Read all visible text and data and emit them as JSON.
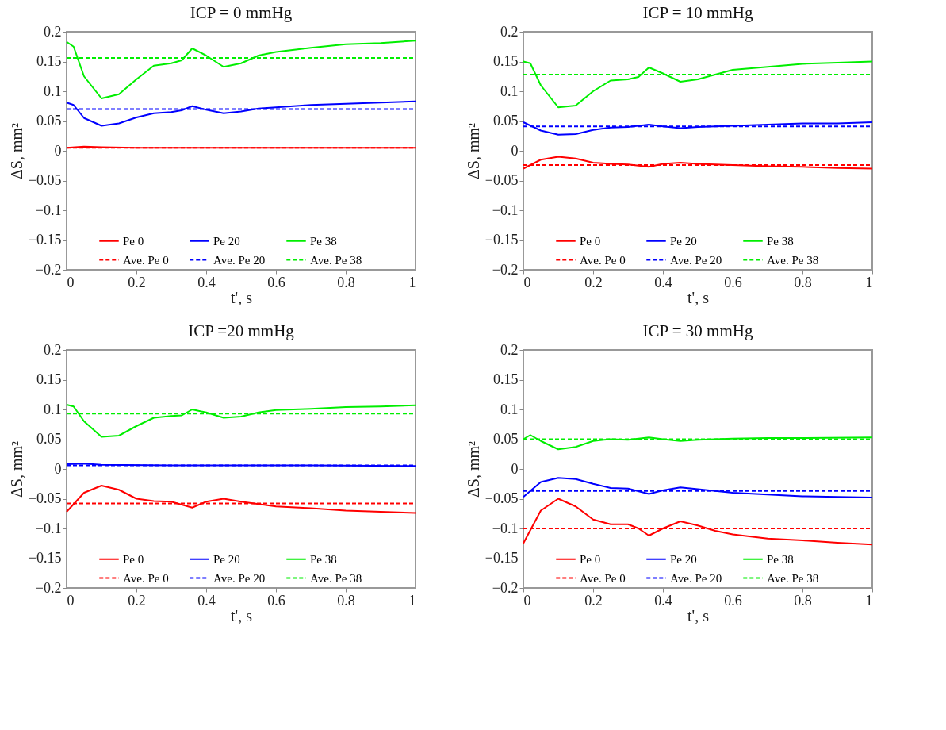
{
  "chart_data": [
    {
      "type": "line",
      "title": "ICP = 0 mmHg",
      "xlabel": "t', s",
      "ylabel": "ΔS, mm²",
      "xlim": [
        0,
        1
      ],
      "ylim": [
        -0.2,
        0.2
      ],
      "xticks": [
        0,
        0.2,
        0.4,
        0.6,
        0.8,
        1
      ],
      "yticks": [
        {
          "value": -0.2,
          "label": "−0.2"
        },
        {
          "value": -0.15,
          "label": "−0.15"
        },
        {
          "value": -0.1,
          "label": "−0.1"
        },
        {
          "value": -0.05,
          "label": "−0.05"
        },
        0,
        0.05,
        0.1,
        0.15,
        0.2
      ],
      "grid": false,
      "legend": "bottom",
      "marker": "none",
      "series": [
        {
          "name": "Pe 0",
          "color": "#ff0000",
          "line_style": "solid",
          "x": [
            0,
            0.05,
            0.1,
            0.2,
            0.4,
            0.6,
            0.8,
            1
          ],
          "values": [
            0.005,
            0.007,
            0.006,
            0.005,
            0.005,
            0.005,
            0.005,
            0.005
          ]
        },
        {
          "name": "Pe 20",
          "color": "#0000ff",
          "line_style": "solid",
          "x": [
            0,
            0.02,
            0.05,
            0.1,
            0.15,
            0.2,
            0.25,
            0.3,
            0.33,
            0.36,
            0.4,
            0.45,
            0.5,
            0.55,
            0.6,
            0.7,
            0.8,
            0.9,
            1
          ],
          "values": [
            0.081,
            0.077,
            0.055,
            0.042,
            0.046,
            0.056,
            0.063,
            0.065,
            0.068,
            0.075,
            0.069,
            0.063,
            0.066,
            0.071,
            0.073,
            0.077,
            0.079,
            0.081,
            0.083
          ]
        },
        {
          "name": "Pe 38",
          "color": "#00ee00",
          "line_style": "solid",
          "x": [
            0,
            0.02,
            0.05,
            0.1,
            0.15,
            0.2,
            0.25,
            0.3,
            0.33,
            0.36,
            0.4,
            0.45,
            0.5,
            0.55,
            0.6,
            0.7,
            0.8,
            0.9,
            1
          ],
          "values": [
            0.183,
            0.175,
            0.125,
            0.088,
            0.095,
            0.12,
            0.143,
            0.147,
            0.152,
            0.172,
            0.16,
            0.141,
            0.147,
            0.16,
            0.166,
            0.173,
            0.179,
            0.181,
            0.185
          ]
        },
        {
          "name": "Ave. Pe 0",
          "color": "#ff0000",
          "line_style": "dashed",
          "x": [
            0,
            1
          ],
          "values": [
            0.005,
            0.005
          ]
        },
        {
          "name": "Ave. Pe 20",
          "color": "#0000ff",
          "line_style": "dashed",
          "x": [
            0,
            1
          ],
          "values": [
            0.07,
            0.07
          ]
        },
        {
          "name": "Ave. Pe 38",
          "color": "#00ee00",
          "line_style": "dashed",
          "x": [
            0,
            1
          ],
          "values": [
            0.156,
            0.156
          ]
        }
      ]
    },
    {
      "type": "line",
      "title": "ICP = 10 mmHg",
      "xlabel": "t', s",
      "ylabel": "ΔS, mm²",
      "xlim": [
        0,
        1
      ],
      "ylim": [
        -0.2,
        0.2
      ],
      "xticks": [
        0,
        0.2,
        0.4,
        0.6,
        0.8,
        1
      ],
      "yticks": [
        {
          "value": -0.2,
          "label": "−0.2"
        },
        {
          "value": -0.15,
          "label": "−0.15"
        },
        {
          "value": -0.1,
          "label": "−0.1"
        },
        {
          "value": -0.05,
          "label": "−0.05"
        },
        0,
        0.05,
        0.1,
        0.15,
        0.2
      ],
      "grid": false,
      "legend": "bottom",
      "marker": "none",
      "series": [
        {
          "name": "Pe 0",
          "color": "#ff0000",
          "line_style": "solid",
          "x": [
            0,
            0.05,
            0.1,
            0.15,
            0.2,
            0.25,
            0.3,
            0.36,
            0.4,
            0.45,
            0.5,
            0.6,
            0.7,
            0.8,
            0.9,
            1
          ],
          "values": [
            -0.03,
            -0.015,
            -0.01,
            -0.013,
            -0.02,
            -0.022,
            -0.023,
            -0.027,
            -0.022,
            -0.02,
            -0.022,
            -0.024,
            -0.026,
            -0.027,
            -0.029,
            -0.03
          ]
        },
        {
          "name": "Pe 20",
          "color": "#0000ff",
          "line_style": "solid",
          "x": [
            0,
            0.05,
            0.1,
            0.15,
            0.2,
            0.25,
            0.3,
            0.36,
            0.4,
            0.45,
            0.5,
            0.6,
            0.7,
            0.8,
            0.9,
            1
          ],
          "values": [
            0.048,
            0.034,
            0.027,
            0.028,
            0.035,
            0.039,
            0.04,
            0.044,
            0.041,
            0.038,
            0.04,
            0.042,
            0.044,
            0.046,
            0.046,
            0.048
          ]
        },
        {
          "name": "Pe 38",
          "color": "#00ee00",
          "line_style": "solid",
          "x": [
            0,
            0.02,
            0.05,
            0.1,
            0.15,
            0.2,
            0.25,
            0.3,
            0.33,
            0.36,
            0.4,
            0.45,
            0.5,
            0.55,
            0.6,
            0.7,
            0.8,
            0.9,
            1
          ],
          "values": [
            0.15,
            0.147,
            0.11,
            0.073,
            0.076,
            0.1,
            0.118,
            0.12,
            0.124,
            0.14,
            0.13,
            0.116,
            0.12,
            0.128,
            0.136,
            0.141,
            0.146,
            0.148,
            0.15
          ]
        },
        {
          "name": "Ave. Pe 0",
          "color": "#ff0000",
          "line_style": "dashed",
          "x": [
            0,
            1
          ],
          "values": [
            -0.024,
            -0.024
          ]
        },
        {
          "name": "Ave. Pe 20",
          "color": "#0000ff",
          "line_style": "dashed",
          "x": [
            0,
            1
          ],
          "values": [
            0.041,
            0.041
          ]
        },
        {
          "name": "Ave. Pe 38",
          "color": "#00ee00",
          "line_style": "dashed",
          "x": [
            0,
            1
          ],
          "values": [
            0.128,
            0.128
          ]
        }
      ]
    },
    {
      "type": "line",
      "title": "ICP =20 mmHg",
      "xlabel": "t', s",
      "ylabel": "ΔS, mm²",
      "xlim": [
        0,
        1
      ],
      "ylim": [
        -0.2,
        0.2
      ],
      "xticks": [
        0,
        0.2,
        0.4,
        0.6,
        0.8,
        1
      ],
      "yticks": [
        {
          "value": -0.2,
          "label": "−0.2"
        },
        {
          "value": -0.15,
          "label": "−0.15"
        },
        {
          "value": -0.1,
          "label": "−0.1"
        },
        {
          "value": -0.05,
          "label": "−0.05"
        },
        0,
        0.05,
        0.1,
        0.15,
        0.2
      ],
      "grid": false,
      "legend": "bottom",
      "marker": "none",
      "series": [
        {
          "name": "Pe 0",
          "color": "#ff0000",
          "line_style": "solid",
          "x": [
            0,
            0.05,
            0.1,
            0.15,
            0.2,
            0.25,
            0.3,
            0.36,
            0.4,
            0.45,
            0.5,
            0.6,
            0.7,
            0.8,
            0.9,
            1
          ],
          "values": [
            -0.072,
            -0.04,
            -0.028,
            -0.035,
            -0.05,
            -0.054,
            -0.055,
            -0.065,
            -0.055,
            -0.05,
            -0.055,
            -0.063,
            -0.066,
            -0.07,
            -0.072,
            -0.074
          ]
        },
        {
          "name": "Pe 20",
          "color": "#0000ff",
          "line_style": "solid",
          "x": [
            0,
            0.05,
            0.1,
            0.3,
            0.5,
            0.7,
            1
          ],
          "values": [
            0.008,
            0.009,
            0.007,
            0.006,
            0.006,
            0.006,
            0.005
          ]
        },
        {
          "name": "Pe 38",
          "color": "#00ee00",
          "line_style": "solid",
          "x": [
            0,
            0.02,
            0.05,
            0.1,
            0.15,
            0.2,
            0.25,
            0.3,
            0.33,
            0.36,
            0.4,
            0.45,
            0.5,
            0.55,
            0.6,
            0.7,
            0.8,
            0.9,
            1
          ],
          "values": [
            0.108,
            0.105,
            0.08,
            0.054,
            0.056,
            0.072,
            0.086,
            0.089,
            0.09,
            0.1,
            0.095,
            0.086,
            0.088,
            0.095,
            0.099,
            0.101,
            0.104,
            0.105,
            0.107
          ]
        },
        {
          "name": "Ave. Pe 0",
          "color": "#ff0000",
          "line_style": "dashed",
          "x": [
            0,
            1
          ],
          "values": [
            -0.058,
            -0.058
          ]
        },
        {
          "name": "Ave. Pe 20",
          "color": "#0000ff",
          "line_style": "dashed",
          "x": [
            0,
            1
          ],
          "values": [
            0.006,
            0.006
          ]
        },
        {
          "name": "Ave. Pe 38",
          "color": "#00ee00",
          "line_style": "dashed",
          "x": [
            0,
            1
          ],
          "values": [
            0.093,
            0.093
          ]
        }
      ]
    },
    {
      "type": "line",
      "title": "ICP = 30 mmHg",
      "xlabel": "t', s",
      "ylabel": "ΔS, mm²",
      "xlim": [
        0,
        1
      ],
      "ylim": [
        -0.2,
        0.2
      ],
      "xticks": [
        0,
        0.2,
        0.4,
        0.6,
        0.8,
        1
      ],
      "yticks": [
        {
          "value": -0.2,
          "label": "−0.2"
        },
        {
          "value": -0.15,
          "label": "−0.15"
        },
        {
          "value": -0.1,
          "label": "−0.1"
        },
        {
          "value": -0.05,
          "label": "−0.05"
        },
        0,
        0.05,
        0.1,
        0.15,
        0.2
      ],
      "grid": false,
      "legend": "bottom",
      "marker": "none",
      "series": [
        {
          "name": "Pe 0",
          "color": "#ff0000",
          "line_style": "solid",
          "x": [
            0,
            0.05,
            0.1,
            0.15,
            0.2,
            0.25,
            0.3,
            0.33,
            0.36,
            0.4,
            0.45,
            0.5,
            0.55,
            0.6,
            0.7,
            0.8,
            0.9,
            1
          ],
          "values": [
            -0.125,
            -0.07,
            -0.05,
            -0.063,
            -0.085,
            -0.093,
            -0.093,
            -0.1,
            -0.112,
            -0.1,
            -0.088,
            -0.095,
            -0.104,
            -0.11,
            -0.117,
            -0.12,
            -0.124,
            -0.127
          ]
        },
        {
          "name": "Pe 20",
          "color": "#0000ff",
          "line_style": "solid",
          "x": [
            0,
            0.05,
            0.1,
            0.15,
            0.2,
            0.25,
            0.3,
            0.36,
            0.4,
            0.45,
            0.5,
            0.6,
            0.7,
            0.8,
            0.9,
            1
          ],
          "values": [
            -0.047,
            -0.022,
            -0.015,
            -0.017,
            -0.025,
            -0.032,
            -0.033,
            -0.042,
            -0.036,
            -0.031,
            -0.034,
            -0.04,
            -0.043,
            -0.046,
            -0.047,
            -0.048
          ]
        },
        {
          "name": "Pe 38",
          "color": "#00ee00",
          "line_style": "solid",
          "x": [
            0,
            0.02,
            0.05,
            0.1,
            0.15,
            0.2,
            0.25,
            0.3,
            0.36,
            0.4,
            0.45,
            0.5,
            0.6,
            0.7,
            0.8,
            1
          ],
          "values": [
            0.05,
            0.057,
            0.047,
            0.033,
            0.037,
            0.047,
            0.05,
            0.049,
            0.053,
            0.05,
            0.047,
            0.049,
            0.051,
            0.052,
            0.052,
            0.053
          ]
        },
        {
          "name": "Ave. Pe 0",
          "color": "#ff0000",
          "line_style": "dashed",
          "x": [
            0,
            1
          ],
          "values": [
            -0.1,
            -0.1
          ]
        },
        {
          "name": "Ave. Pe 20",
          "color": "#0000ff",
          "line_style": "dashed",
          "x": [
            0,
            1
          ],
          "values": [
            -0.037,
            -0.037
          ]
        },
        {
          "name": "Ave. Pe 38",
          "color": "#00ee00",
          "line_style": "dashed",
          "x": [
            0,
            1
          ],
          "values": [
            0.05,
            0.05
          ]
        }
      ]
    }
  ]
}
